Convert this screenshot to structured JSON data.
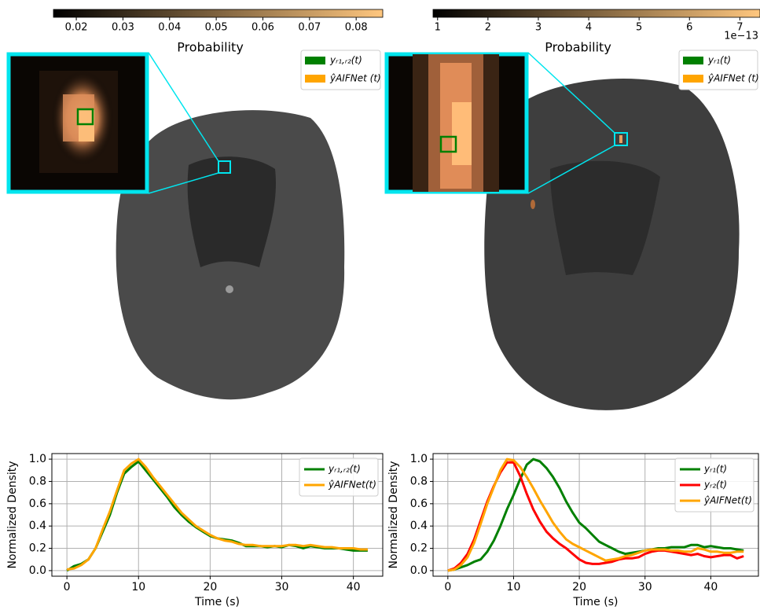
{
  "chart_data": [
    {
      "type": "colorbar",
      "label": "Probability",
      "cmap": "copper",
      "xlim": [
        0.0151,
        0.0857
      ],
      "xticks": [
        0.02,
        0.03,
        0.04,
        0.05,
        0.06,
        0.07,
        0.08
      ]
    },
    {
      "type": "colorbar",
      "label": "Probability",
      "cmap": "copper",
      "offset_text": "1e−13",
      "xlim": [
        0.91,
        7.4
      ],
      "xticks": [
        1,
        2,
        3,
        4,
        5,
        6,
        7
      ]
    },
    {
      "type": "image",
      "legend": [
        {
          "name": "yᵣ₁,ᵣ₂(t)",
          "color": "#008000"
        },
        {
          "name": "ŷAIFNet (t)",
          "color": "#ffa500"
        }
      ]
    },
    {
      "type": "image",
      "legend": [
        {
          "name": "yᵣ₁(t)",
          "color": "#008000"
        },
        {
          "name": "ŷAIFNet (t)",
          "color": "#ffa500"
        }
      ]
    },
    {
      "type": "line",
      "xlabel": "Time (s)",
      "ylabel": "Normalized Density",
      "grid": true,
      "legend_loc": "upper right",
      "xlim": [
        -2.1,
        44.1
      ],
      "ylim": [
        -0.05,
        1.05
      ],
      "xticks": [
        0,
        10,
        20,
        30,
        40
      ],
      "yticks": [
        {
          "value": 0,
          "label": "0.0"
        },
        0.2,
        0.4,
        0.6,
        0.8,
        {
          "value": 1,
          "label": "1.0"
        }
      ],
      "x": [
        0,
        1,
        2,
        3,
        4,
        5,
        6,
        7,
        8,
        9,
        10,
        11,
        12,
        13,
        14,
        15,
        16,
        17,
        18,
        19,
        20,
        21,
        22,
        23,
        24,
        25,
        26,
        27,
        28,
        29,
        30,
        31,
        32,
        33,
        34,
        35,
        36,
        37,
        38,
        39,
        40,
        41,
        42
      ],
      "series": [
        {
          "name": "yᵣ₁,ᵣ₂(t)",
          "color": "#008000",
          "values": [
            0.0,
            0.04,
            0.06,
            0.1,
            0.2,
            0.35,
            0.5,
            0.7,
            0.87,
            0.93,
            0.98,
            0.9,
            0.82,
            0.74,
            0.66,
            0.57,
            0.5,
            0.44,
            0.39,
            0.35,
            0.31,
            0.29,
            0.28,
            0.27,
            0.25,
            0.22,
            0.22,
            0.22,
            0.21,
            0.22,
            0.21,
            0.23,
            0.22,
            0.2,
            0.22,
            0.21,
            0.2,
            0.2,
            0.2,
            0.19,
            0.18,
            0.18,
            0.18
          ]
        },
        {
          "name": "ŷAIFNet(t)",
          "color": "#ffa500",
          "values": [
            0.01,
            0.02,
            0.05,
            0.1,
            0.2,
            0.37,
            0.53,
            0.72,
            0.9,
            0.96,
            1.0,
            0.93,
            0.84,
            0.76,
            0.68,
            0.6,
            0.52,
            0.46,
            0.4,
            0.36,
            0.32,
            0.29,
            0.27,
            0.26,
            0.24,
            0.23,
            0.23,
            0.22,
            0.22,
            0.22,
            0.22,
            0.23,
            0.23,
            0.22,
            0.23,
            0.22,
            0.21,
            0.21,
            0.2,
            0.2,
            0.2,
            0.19,
            0.19
          ]
        }
      ]
    },
    {
      "type": "line",
      "xlabel": "Time (s)",
      "ylabel": "Normalized Density",
      "grid": true,
      "legend_loc": "upper right",
      "xlim": [
        -2.25,
        47.25
      ],
      "ylim": [
        -0.05,
        1.05
      ],
      "xticks": [
        0,
        10,
        20,
        30,
        40
      ],
      "yticks": [
        {
          "value": 0,
          "label": "0.0"
        },
        0.2,
        0.4,
        0.6,
        0.8,
        {
          "value": 1,
          "label": "1.0"
        }
      ],
      "x": [
        0,
        1,
        2,
        3,
        4,
        5,
        6,
        7,
        8,
        9,
        10,
        11,
        12,
        13,
        14,
        15,
        16,
        17,
        18,
        19,
        20,
        21,
        22,
        23,
        24,
        25,
        26,
        27,
        28,
        29,
        30,
        31,
        32,
        33,
        34,
        35,
        36,
        37,
        38,
        39,
        40,
        41,
        42,
        43,
        44,
        45
      ],
      "series": [
        {
          "name": "yᵣ₁(t)",
          "color": "#008000",
          "values": [
            0,
            0.01,
            0.03,
            0.05,
            0.08,
            0.1,
            0.17,
            0.27,
            0.4,
            0.55,
            0.68,
            0.82,
            0.95,
            1.0,
            0.98,
            0.92,
            0.84,
            0.74,
            0.62,
            0.52,
            0.43,
            0.38,
            0.32,
            0.26,
            0.23,
            0.2,
            0.17,
            0.15,
            0.16,
            0.17,
            0.18,
            0.19,
            0.2,
            0.2,
            0.21,
            0.21,
            0.21,
            0.23,
            0.23,
            0.21,
            0.22,
            0.21,
            0.2,
            0.2,
            0.19,
            0.18
          ]
        },
        {
          "name": "yᵣ₂(t)",
          "color": "#ff0000",
          "values": [
            0,
            0.02,
            0.07,
            0.15,
            0.28,
            0.45,
            0.62,
            0.76,
            0.88,
            0.97,
            0.97,
            0.85,
            0.69,
            0.55,
            0.44,
            0.35,
            0.29,
            0.24,
            0.2,
            0.15,
            0.1,
            0.07,
            0.06,
            0.06,
            0.07,
            0.08,
            0.1,
            0.11,
            0.11,
            0.12,
            0.15,
            0.17,
            0.18,
            0.18,
            0.17,
            0.16,
            0.15,
            0.14,
            0.15,
            0.13,
            0.12,
            0.13,
            0.14,
            0.14,
            0.11,
            0.13
          ]
        },
        {
          "name": "ŷAIFNet(t)",
          "color": "#ffa500",
          "values": [
            0,
            0.01,
            0.05,
            0.12,
            0.25,
            0.42,
            0.6,
            0.75,
            0.9,
            1.0,
            0.99,
            0.93,
            0.84,
            0.74,
            0.63,
            0.53,
            0.43,
            0.35,
            0.28,
            0.24,
            0.21,
            0.18,
            0.15,
            0.12,
            0.09,
            0.1,
            0.11,
            0.13,
            0.14,
            0.16,
            0.18,
            0.19,
            0.19,
            0.19,
            0.18,
            0.18,
            0.17,
            0.17,
            0.2,
            0.19,
            0.17,
            0.17,
            0.16,
            0.16,
            0.17,
            0.17
          ]
        }
      ]
    }
  ]
}
